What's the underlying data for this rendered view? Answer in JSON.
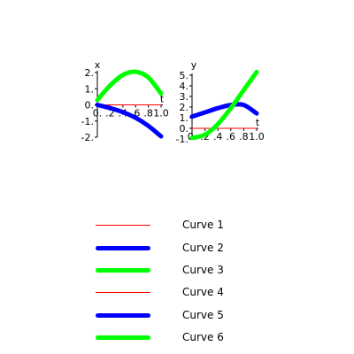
{
  "chart_data": [
    {
      "type": "line",
      "xlabel": "t",
      "ylabel": "x",
      "xlim": [
        0,
        1.0
      ],
      "ylim": [
        -2,
        2
      ],
      "xticks": [
        "0.",
        ".2",
        ".4",
        ".6",
        ".8",
        "1.0"
      ],
      "yticks": [
        "2.",
        "1.",
        "0.",
        "-1.",
        "-2."
      ],
      "series": [
        {
          "name": "Curve 1",
          "color": "#ff0000",
          "width": "thin",
          "x": [
            0.0,
            0.2,
            0.4,
            0.6,
            0.8,
            1.0
          ],
          "y": [
            0.0,
            0.0,
            0.0,
            0.0,
            0.0,
            0.0
          ]
        },
        {
          "name": "Curve 2",
          "color": "#0000ff",
          "width": "thick",
          "x": [
            0.0,
            0.2,
            0.4,
            0.6,
            0.8,
            1.0
          ],
          "y": [
            0.0,
            -0.2,
            -0.45,
            -0.8,
            -1.3,
            -1.95
          ]
        },
        {
          "name": "Curve 3",
          "color": "#00ff00",
          "width": "thick",
          "x": [
            0.0,
            0.2,
            0.4,
            0.6,
            0.8,
            1.0
          ],
          "y": [
            0.3,
            1.2,
            1.85,
            2.05,
            1.7,
            0.7
          ]
        }
      ]
    },
    {
      "type": "line",
      "xlabel": "t",
      "ylabel": "y",
      "xlim": [
        0,
        1.0
      ],
      "ylim": [
        -1,
        5
      ],
      "xticks": [
        "0.",
        ".2",
        ".4",
        ".6",
        ".8",
        "1.0"
      ],
      "yticks": [
        "5.",
        "4.",
        "3.",
        "2.",
        "1.",
        "0.",
        "-1."
      ],
      "series": [
        {
          "name": "Curve 4",
          "color": "#ff0000",
          "width": "thin",
          "x": [
            0.0,
            0.2,
            0.4,
            0.6,
            0.8,
            1.0
          ],
          "y": [
            0.0,
            0.0,
            0.0,
            0.0,
            0.0,
            0.0
          ]
        },
        {
          "name": "Curve 5",
          "color": "#0000ff",
          "width": "thick",
          "x": [
            0.0,
            0.2,
            0.4,
            0.6,
            0.8,
            1.0
          ],
          "y": [
            1.1,
            1.5,
            1.9,
            2.2,
            2.2,
            1.4
          ]
        },
        {
          "name": "Curve 6",
          "color": "#00ff00",
          "width": "thick",
          "x": [
            0.0,
            0.2,
            0.4,
            0.6,
            0.8,
            1.0
          ],
          "y": [
            -0.9,
            -0.6,
            0.4,
            1.9,
            3.6,
            5.3
          ]
        }
      ]
    }
  ],
  "legend": {
    "placement": "bottom",
    "items": [
      {
        "label": "Curve 1",
        "color": "#ff0000",
        "width": "thin"
      },
      {
        "label": "Curve 2",
        "color": "#0000ff",
        "width": "thick"
      },
      {
        "label": "Curve 3",
        "color": "#00ff00",
        "width": "thick"
      },
      {
        "label": "Curve 4",
        "color": "#ff0000",
        "width": "thin"
      },
      {
        "label": "Curve 5",
        "color": "#0000ff",
        "width": "thick"
      },
      {
        "label": "Curve 6",
        "color": "#00ff00",
        "width": "thick"
      }
    ]
  }
}
